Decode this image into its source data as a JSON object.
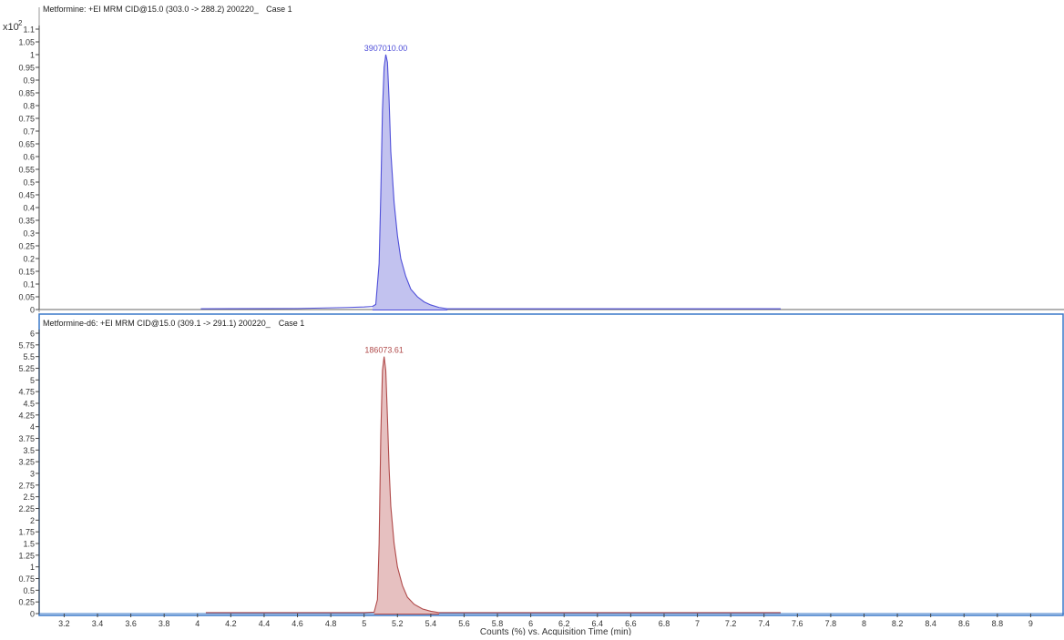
{
  "scale_label": {
    "prefix": "x10",
    "exponent": "2"
  },
  "x_axis_label": "Counts (%) vs. Acquisition Time (min)",
  "chart_data": [
    {
      "type": "area",
      "title": "Metformine: +EI MRM CID@15.0 (303.0 -> 288.2) 200220_",
      "title_suffix": "Case 1",
      "peak_label": "3907010.00",
      "color": "#4f4fd9",
      "fill": "#c2c2ef",
      "xlim": [
        3.05,
        9.2
      ],
      "ylim": [
        0,
        1.1
      ],
      "yticks": [
        0,
        0.05,
        0.1,
        0.15,
        0.2,
        0.25,
        0.3,
        0.35,
        0.4,
        0.45,
        0.5,
        0.55,
        0.6,
        0.65,
        0.7,
        0.75,
        0.8,
        0.85,
        0.9,
        0.95,
        1,
        1.05,
        1.1
      ],
      "ytick_labels": [
        "0",
        "0.05",
        "0.1",
        "0.15",
        "0.2",
        "0.25",
        "0.3",
        "0.35",
        "0.4",
        "0.45",
        "0.5",
        "0.55",
        "0.6",
        "0.65",
        "0.7",
        "0.75",
        "0.8",
        "0.85",
        "0.9",
        "0.95",
        "1",
        "1.05",
        "1.1"
      ],
      "x": [
        4.02,
        4.6,
        4.9,
        5.0,
        5.05,
        5.07,
        5.09,
        5.1,
        5.11,
        5.12,
        5.13,
        5.14,
        5.15,
        5.16,
        5.18,
        5.2,
        5.22,
        5.25,
        5.28,
        5.32,
        5.36,
        5.4,
        5.45,
        5.5,
        6.0,
        7.5
      ],
      "y": [
        0.003,
        0.004,
        0.008,
        0.01,
        0.012,
        0.02,
        0.18,
        0.45,
        0.78,
        0.95,
        1.0,
        0.97,
        0.82,
        0.62,
        0.42,
        0.29,
        0.2,
        0.13,
        0.08,
        0.05,
        0.03,
        0.018,
        0.008,
        0.003,
        0.003,
        0.003
      ],
      "fill_range": [
        5.05,
        5.5
      ]
    },
    {
      "type": "area",
      "title": "Metformine-d6: +EI MRM CID@15.0 (309.1 -> 291.1) 200220_",
      "title_suffix": "Case 1",
      "peak_label": "186073.61",
      "color": "#b04a4a",
      "fill": "#e6c0c0",
      "xlim": [
        3.05,
        9.2
      ],
      "ylim": [
        0,
        6
      ],
      "yticks": [
        0,
        0.25,
        0.5,
        0.75,
        1,
        1.25,
        1.5,
        1.75,
        2,
        2.25,
        2.5,
        2.75,
        3,
        3.25,
        3.5,
        3.75,
        4,
        4.25,
        4.5,
        4.75,
        5,
        5.25,
        5.5,
        5.75,
        6
      ],
      "ytick_labels": [
        "0",
        "0.25",
        "0.5",
        "0.75",
        "1",
        "1.25",
        "1.5",
        "1.75",
        "2",
        "2.25",
        "2.5",
        "2.75",
        "3",
        "3.25",
        "3.5",
        "3.75",
        "4",
        "4.25",
        "4.5",
        "4.75",
        "5",
        "5.25",
        "5.5",
        "5.75",
        "6"
      ],
      "x": [
        4.05,
        4.6,
        5.0,
        5.06,
        5.08,
        5.09,
        5.1,
        5.11,
        5.12,
        5.13,
        5.14,
        5.15,
        5.16,
        5.18,
        5.2,
        5.23,
        5.26,
        5.3,
        5.35,
        5.4,
        5.45,
        7.5
      ],
      "y": [
        0.02,
        0.02,
        0.02,
        0.03,
        0.3,
        1.5,
        3.8,
        5.2,
        5.5,
        5.2,
        4.2,
        3.1,
        2.3,
        1.5,
        1.0,
        0.6,
        0.35,
        0.2,
        0.1,
        0.05,
        0.02,
        0.02
      ],
      "fill_range": [
        5.06,
        5.45
      ],
      "xticks": [
        3.2,
        3.4,
        3.6,
        3.8,
        4,
        4.2,
        4.4,
        4.6,
        4.8,
        5,
        5.2,
        5.4,
        5.6,
        5.8,
        6,
        6.2,
        6.4,
        6.6,
        6.8,
        7,
        7.2,
        7.4,
        7.6,
        7.8,
        8,
        8.2,
        8.4,
        8.6,
        8.8,
        9
      ],
      "xtick_labels": [
        "3.2",
        "3.4",
        "3.6",
        "3.8",
        "4",
        "4.2",
        "4.4",
        "4.6",
        "4.8",
        "5",
        "5.2",
        "5.4",
        "5.6",
        "5.8",
        "6",
        "6.2",
        "6.4",
        "6.6",
        "6.8",
        "7",
        "7.2",
        "7.4",
        "7.6",
        "7.8",
        "8",
        "8.2",
        "8.4",
        "8.6",
        "8.8",
        "9"
      ]
    }
  ]
}
